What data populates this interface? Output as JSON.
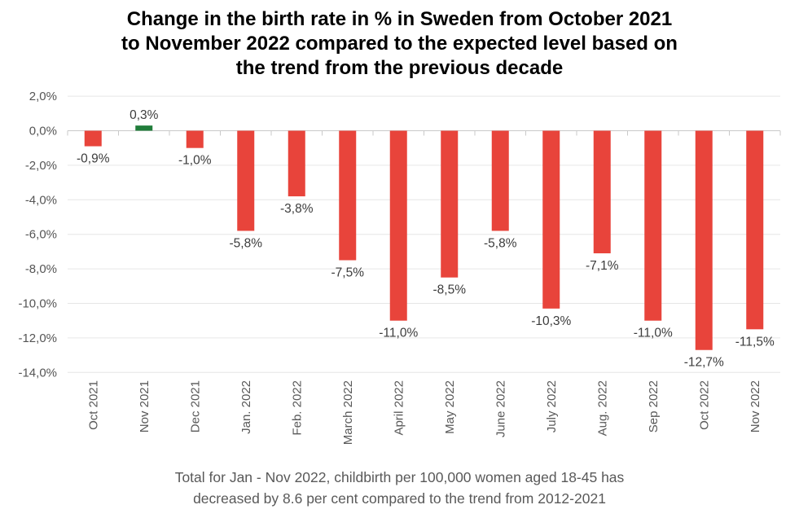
{
  "header": {
    "title_lines": [
      "Change in the birth rate in % in Sweden from October 2021",
      "to November 2022 compared to the expected level based on",
      "the trend from the previous decade"
    ]
  },
  "footnote": {
    "lines": [
      "Total for Jan - Nov 2022, childbirth per 100,000 women aged 18-45 has",
      "decreased by 8.6 per cent compared to the trend from 2012-2021"
    ]
  },
  "chart_data": {
    "type": "bar",
    "title": "Change in the birth rate in % in Sweden from October 2021 to November 2022 compared to the expected level based on the trend from the previous decade",
    "categories": [
      "Oct 2021",
      "Nov 2021",
      "Dec 2021",
      "Jan. 2022",
      "Feb. 2022",
      "March 2022",
      "April 2022",
      "May 2022",
      "June 2022",
      "July 2022",
      "Aug. 2022",
      "Sep 2022",
      "Oct 2022",
      "Nov 2022"
    ],
    "values": [
      -0.9,
      0.3,
      -1.0,
      -5.8,
      -3.8,
      -7.5,
      -11.0,
      -8.5,
      -5.8,
      -10.3,
      -7.1,
      -11.0,
      -12.7,
      -11.5
    ],
    "data_labels": [
      "-0,9%",
      "0,3%",
      "-1,0%",
      "-5,8%",
      "-3,8%",
      "-7,5%",
      "-11,0%",
      "-8,5%",
      "-5,8%",
      "-10,3%",
      "-7,1%",
      "-11,0%",
      "-12,7%",
      "-11,5%"
    ],
    "ylim": [
      -14,
      2
    ],
    "ytick_step": 2,
    "ytick_labels": [
      "2,0%",
      "0,0%",
      "-2,0%",
      "-4,0%",
      "-6,0%",
      "-8,0%",
      "-10,0%",
      "-12,0%",
      "-14,0%"
    ],
    "grid": "horizontal",
    "legend": "none",
    "colors": {
      "positive_bar": "#217d3b",
      "negative_bar": "#e8443b",
      "gridline": "#e6e6e6",
      "baseline": "#c9c9c9",
      "y_axis_text": "#555555",
      "x_axis_text": "#585858",
      "data_label_text": "#3c3c3c"
    }
  }
}
